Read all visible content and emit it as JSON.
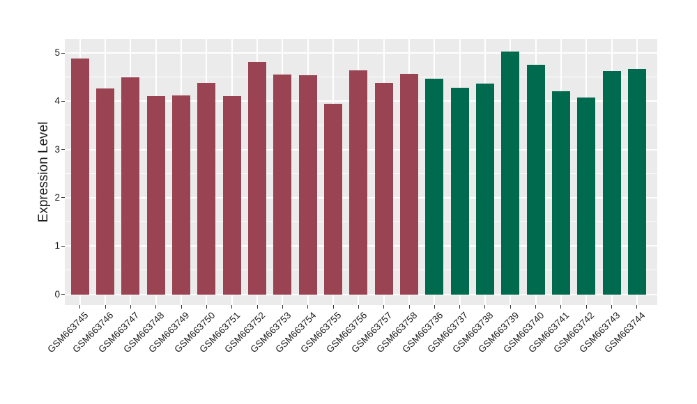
{
  "figure": {
    "background": "#ffffff",
    "panel_background": "#ebebeb",
    "gridline_color": "#ffffff",
    "tick_color": "#333333",
    "text_color": "#1a1a1a"
  },
  "chart_data": {
    "type": "bar",
    "title": "",
    "xlabel": "",
    "ylabel": "Expression Level",
    "categories": [
      "GSM663745",
      "GSM663746",
      "GSM663747",
      "GSM663748",
      "GSM663749",
      "GSM663750",
      "GSM663751",
      "GSM663752",
      "GSM663753",
      "GSM663754",
      "GSM663755",
      "GSM663756",
      "GSM663757",
      "GSM663758",
      "GSM663736",
      "GSM663737",
      "GSM663738",
      "GSM663739",
      "GSM663740",
      "GSM663741",
      "GSM663742",
      "GSM663743",
      "GSM663744"
    ],
    "values": [
      4.89,
      4.27,
      4.5,
      4.1,
      4.12,
      4.38,
      4.11,
      4.81,
      4.56,
      4.54,
      3.95,
      4.64,
      4.38,
      4.57,
      4.46,
      4.28,
      4.37,
      5.03,
      4.76,
      4.21,
      4.07,
      4.62,
      4.67
    ],
    "series": [
      {
        "name": "maroon-group",
        "color": "#9a4353",
        "start_index": 0,
        "end_index": 13
      },
      {
        "name": "green-group",
        "color": "#006a4e",
        "start_index": 14,
        "end_index": 22
      }
    ],
    "ylim": [
      -0.26,
      5.28
    ],
    "yticks": [
      0,
      1,
      2,
      3,
      4,
      5
    ],
    "yticks_minor": [
      0.5,
      1.5,
      2.5,
      3.5,
      4.5
    ],
    "grid": "white major+minor gridlines on gray panel",
    "legend_position": "none"
  }
}
